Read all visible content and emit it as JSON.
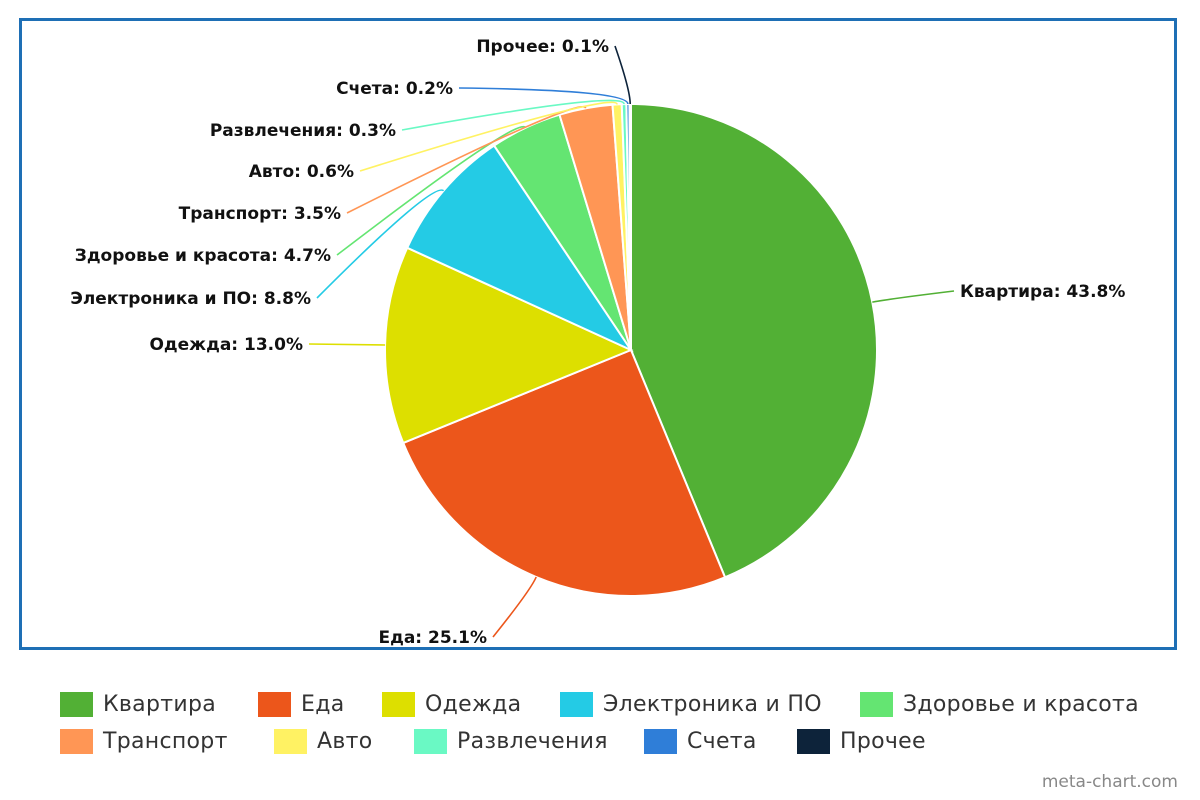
{
  "chart_data": {
    "type": "pie",
    "slices": [
      {
        "name": "Квартира",
        "value": 43.8,
        "label": "Квартира: 43.8%",
        "color": "#52b035"
      },
      {
        "name": "Еда",
        "value": 25.1,
        "label": "Еда: 25.1%",
        "color": "#ec561b"
      },
      {
        "name": "Одежда",
        "value": 13.0,
        "label": "Одежда: 13.0%",
        "color": "#dddf00"
      },
      {
        "name": "Электроника и ПО",
        "value": 8.8,
        "label": "Электроника и ПО: 8.8%",
        "color": "#24cbe5"
      },
      {
        "name": "Здоровье и красота",
        "value": 4.7,
        "label": "Здоровье и красота: 4.7%",
        "color": "#64e572"
      },
      {
        "name": "Транспорт",
        "value": 3.5,
        "label": "Транспорт: 3.5%",
        "color": "#ff9655"
      },
      {
        "name": "Авто",
        "value": 0.6,
        "label": "Авто: 0.6%",
        "color": "#fff263"
      },
      {
        "name": "Развлечения",
        "value": 0.3,
        "label": "Развлечения: 0.3%",
        "color": "#6af9c4"
      },
      {
        "name": "Счета",
        "value": 0.2,
        "label": "Счета: 0.2%",
        "color": "#2f7ed8"
      },
      {
        "name": "Прочее",
        "value": 0.1,
        "label": "Прочее: 0.1%",
        "color": "#0d233a"
      }
    ],
    "legend_position": "bottom"
  },
  "credit": "meta-chart.com"
}
